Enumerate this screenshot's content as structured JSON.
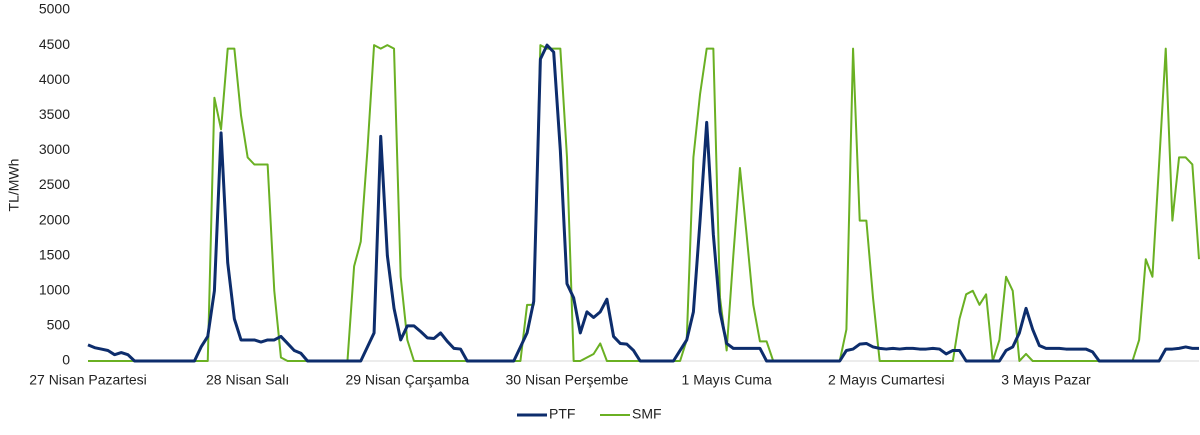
{
  "chart_data": {
    "type": "line",
    "y_label": "TL/MWh",
    "categories": [
      "27 Nisan Pazartesi",
      null,
      null,
      null,
      null,
      null,
      null,
      null,
      null,
      null,
      null,
      null,
      null,
      null,
      null,
      null,
      null,
      null,
      null,
      null,
      null,
      null,
      null,
      null,
      "28 Nisan Salı",
      null,
      null,
      null,
      null,
      null,
      null,
      null,
      null,
      null,
      null,
      null,
      null,
      null,
      null,
      null,
      null,
      null,
      null,
      null,
      null,
      null,
      null,
      null,
      "29 Nisan Çarşamba",
      null,
      null,
      null,
      null,
      null,
      null,
      null,
      null,
      null,
      null,
      null,
      null,
      null,
      null,
      null,
      null,
      null,
      null,
      null,
      null,
      null,
      null,
      null,
      "30 Nisan Perşembe",
      null,
      null,
      null,
      null,
      null,
      null,
      null,
      null,
      null,
      null,
      null,
      null,
      null,
      null,
      null,
      null,
      null,
      null,
      null,
      null,
      null,
      null,
      null,
      "1 Mayıs Cuma",
      null,
      null,
      null,
      null,
      null,
      null,
      null,
      null,
      null,
      null,
      null,
      null,
      null,
      null,
      null,
      null,
      null,
      null,
      null,
      null,
      null,
      null,
      null,
      "2 Mayıs Cumartesi",
      null,
      null,
      null,
      null,
      null,
      null,
      null,
      null,
      null,
      null,
      null,
      null,
      null,
      null,
      null,
      null,
      null,
      null,
      null,
      null,
      null,
      null,
      null,
      "3 Mayıs Pazar",
      null,
      null,
      null,
      null,
      null,
      null,
      null,
      null,
      null,
      null,
      null,
      null,
      null,
      null,
      null,
      null,
      null,
      null,
      null,
      null,
      null,
      null,
      null
    ],
    "series": [
      {
        "name": "PTF",
        "color": "#0d2d6c",
        "values": [
          230,
          190,
          170,
          150,
          90,
          120,
          90,
          0,
          0,
          0,
          0,
          0,
          0,
          0,
          0,
          0,
          0,
          200,
          350,
          1000,
          3250,
          1400,
          600,
          300,
          300,
          300,
          270,
          300,
          300,
          350,
          250,
          150,
          110,
          0,
          0,
          0,
          0,
          0,
          0,
          0,
          0,
          0,
          200,
          400,
          3200,
          1500,
          750,
          300,
          500,
          500,
          420,
          330,
          320,
          400,
          280,
          180,
          170,
          0,
          0,
          0,
          0,
          0,
          0,
          0,
          0,
          200,
          400,
          850,
          4300,
          4500,
          4400,
          3000,
          1100,
          900,
          400,
          700,
          620,
          700,
          880,
          350,
          250,
          240,
          150,
          0,
          0,
          0,
          0,
          0,
          0,
          150,
          300,
          700,
          2000,
          3400,
          1800,
          700,
          250,
          180,
          180,
          180,
          180,
          180,
          0,
          0,
          0,
          0,
          0,
          0,
          0,
          0,
          0,
          0,
          0,
          0,
          150,
          170,
          240,
          250,
          200,
          180,
          170,
          180,
          170,
          180,
          180,
          170,
          170,
          180,
          170,
          100,
          150,
          150,
          0,
          0,
          0,
          0,
          0,
          0,
          150,
          200,
          400,
          750,
          450,
          220,
          180,
          180,
          180,
          170,
          170,
          170,
          170,
          130,
          0,
          0,
          0,
          0,
          0,
          0,
          0,
          0,
          0,
          0,
          170,
          170,
          180,
          200,
          180,
          180
        ]
      },
      {
        "name": "SMF",
        "color": "#6ab023",
        "values": [
          0,
          0,
          0,
          0,
          0,
          0,
          0,
          0,
          0,
          0,
          0,
          0,
          0,
          0,
          0,
          0,
          0,
          0,
          0,
          3750,
          3300,
          4450,
          4450,
          3500,
          2900,
          2800,
          2800,
          2800,
          1000,
          50,
          0,
          0,
          0,
          0,
          0,
          0,
          0,
          0,
          0,
          0,
          1350,
          1700,
          3000,
          4500,
          4450,
          4500,
          4450,
          1200,
          300,
          0,
          0,
          0,
          0,
          0,
          0,
          0,
          0,
          0,
          0,
          0,
          0,
          0,
          0,
          0,
          0,
          0,
          800,
          800,
          4500,
          4450,
          4450,
          4450,
          2900,
          0,
          0,
          50,
          100,
          250,
          0,
          0,
          0,
          0,
          0,
          0,
          0,
          0,
          0,
          0,
          0,
          0,
          300,
          2900,
          3800,
          4450,
          4450,
          900,
          150,
          1500,
          2750,
          1800,
          800,
          280,
          280,
          0,
          0,
          0,
          0,
          0,
          0,
          0,
          0,
          0,
          0,
          0,
          450,
          4450,
          2000,
          2000,
          900,
          0,
          0,
          0,
          0,
          0,
          0,
          0,
          0,
          0,
          0,
          0,
          0,
          600,
          950,
          1000,
          800,
          950,
          0,
          300,
          1200,
          1000,
          0,
          100,
          0,
          0,
          0,
          0,
          0,
          0,
          0,
          0,
          0,
          0,
          0,
          0,
          0,
          0,
          0,
          0,
          300,
          1450,
          1200,
          2800,
          4450,
          2000,
          2900,
          2900,
          2800,
          1450
        ]
      }
    ],
    "ylim": [
      0,
      5000
    ],
    "yticks": [
      0,
      500,
      1000,
      1500,
      2000,
      2500,
      3000,
      3500,
      4000,
      4500,
      5000
    ],
    "legend": "bottom"
  }
}
